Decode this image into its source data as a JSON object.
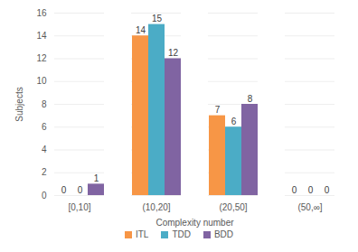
{
  "chart_data": {
    "type": "bar",
    "categories": [
      "[0,10]",
      "(10,20]",
      "(20,50]",
      "(50,∞]"
    ],
    "series": [
      {
        "name": "ITL",
        "color": "#F79646",
        "values": [
          0,
          14,
          7,
          0
        ]
      },
      {
        "name": "TDD",
        "color": "#4BACC6",
        "values": [
          0,
          15,
          6,
          0
        ]
      },
      {
        "name": "BDD",
        "color": "#8064A2",
        "values": [
          1,
          12,
          8,
          0
        ]
      }
    ],
    "x_label": "Complexity number",
    "y_label": "Subjects",
    "ylim": [
      0,
      16
    ],
    "yticks": [
      0,
      2,
      4,
      6,
      8,
      10,
      12,
      14,
      16
    ],
    "grid": true,
    "data_labels": true,
    "legend": "bottom"
  }
}
